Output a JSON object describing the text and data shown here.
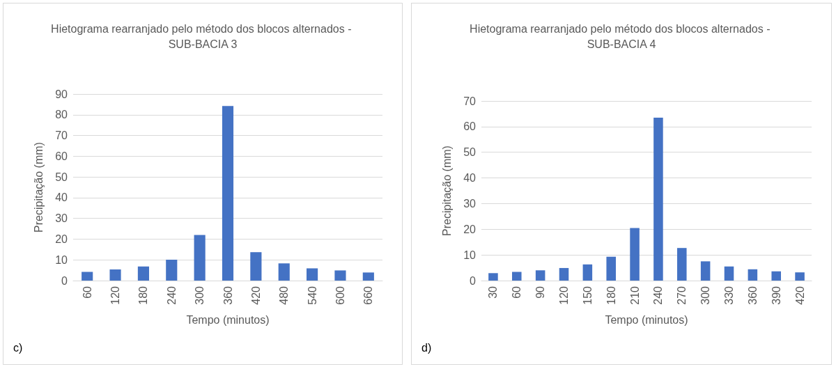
{
  "chart_data": [
    {
      "type": "bar",
      "title": "Hietograma rearranjado pelo método dos blocos alternados - SUB-BACIA 3",
      "xlabel": "Tempo (minutos)",
      "ylabel": "Precipitação (mm)",
      "annotations": [
        "c)"
      ],
      "categories": [
        "60",
        "120",
        "180",
        "240",
        "300",
        "360",
        "420",
        "480",
        "540",
        "600",
        "660"
      ],
      "values": [
        4.2,
        5.4,
        6.8,
        10.1,
        22.0,
        84.2,
        13.7,
        8.3,
        5.9,
        4.9,
        3.9
      ],
      "color": "#4472c4",
      "ylim": [
        0,
        90
      ],
      "yticks": [
        0,
        10,
        20,
        30,
        40,
        50,
        60,
        70,
        80,
        90
      ],
      "grid": "y"
    },
    {
      "type": "bar",
      "title": "Hietograma rearranjado pelo método dos blocos alternados - SUB-BACIA 4",
      "xlabel": "Tempo (minutos)",
      "ylabel": "Precipitação (mm)",
      "annotations": [
        "d)"
      ],
      "categories": [
        "30",
        "60",
        "90",
        "120",
        "150",
        "180",
        "210",
        "240",
        "270",
        "300",
        "330",
        "360",
        "390",
        "420"
      ],
      "values": [
        2.9,
        3.4,
        4.0,
        4.9,
        6.3,
        9.3,
        20.5,
        63.5,
        12.7,
        7.5,
        5.5,
        4.4,
        3.6,
        3.2
      ],
      "color": "#4472c4",
      "ylim": [
        0,
        70
      ],
      "yticks": [
        0,
        10,
        20,
        30,
        40,
        50,
        60,
        70
      ],
      "grid": "y"
    }
  ]
}
